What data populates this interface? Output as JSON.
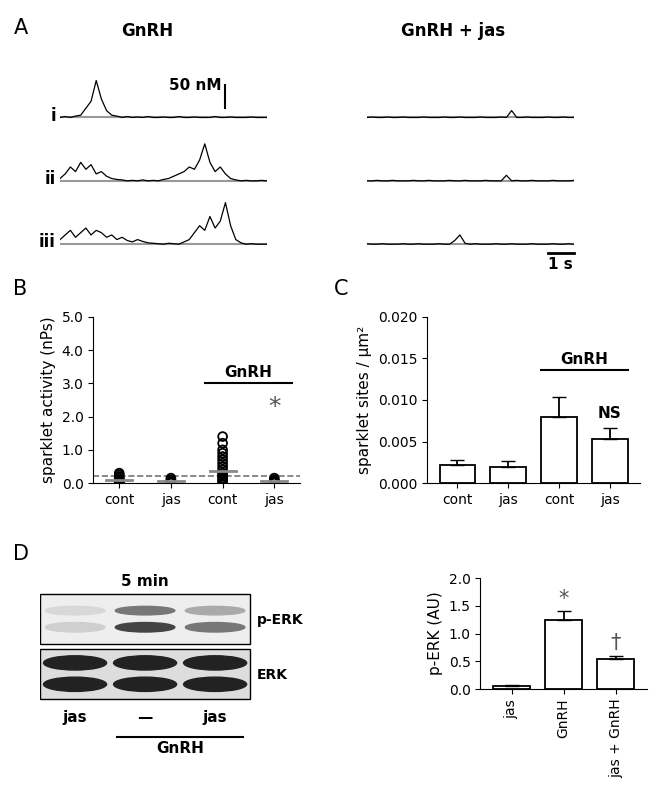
{
  "panel_labels": [
    "A",
    "B",
    "C",
    "D"
  ],
  "traces": {
    "type": "line",
    "columns": [
      "GnRH",
      "GnRH + jas"
    ],
    "rows": [
      "i",
      "ii",
      "iii"
    ],
    "x": [
      0,
      0.2,
      0.4,
      0.6,
      0.8,
      1,
      1.2,
      1.4,
      1.6,
      1.8,
      2,
      2.2,
      2.4,
      2.6,
      2.8,
      3,
      3.2,
      3.4,
      3.6,
      3.8,
      4,
      4.2,
      4.4,
      4.6,
      4.8,
      5,
      5.2,
      5.4,
      5.6,
      5.8,
      6,
      6.2,
      6.4,
      6.6,
      6.8,
      7,
      7.2,
      7.4,
      7.6,
      7.8,
      8
    ],
    "xlim": [
      0,
      8
    ],
    "ylim": [
      -20,
      100
    ],
    "baseline": 0,
    "color": "#000000",
    "series": [
      [
        [
          0,
          2,
          0,
          3,
          5,
          20,
          35,
          80,
          40,
          15,
          5,
          3,
          0,
          2,
          0,
          1,
          0,
          2,
          0,
          0,
          1,
          0,
          0,
          2,
          0,
          0,
          1,
          0,
          0,
          0,
          2,
          0,
          0,
          1,
          0,
          0,
          0,
          1,
          0,
          0,
          0
        ],
        [
          5,
          15,
          30,
          20,
          40,
          25,
          35,
          15,
          20,
          10,
          5,
          3,
          2,
          0,
          1,
          0,
          2,
          0,
          1,
          0,
          3,
          5,
          10,
          15,
          20,
          30,
          25,
          45,
          80,
          40,
          20,
          30,
          15,
          5,
          2,
          0,
          1,
          0,
          0,
          1,
          0
        ],
        [
          10,
          20,
          30,
          15,
          25,
          35,
          20,
          30,
          25,
          15,
          20,
          10,
          15,
          8,
          5,
          10,
          6,
          3,
          2,
          1,
          0,
          2,
          1,
          0,
          5,
          10,
          25,
          40,
          30,
          60,
          35,
          50,
          90,
          40,
          10,
          3,
          0,
          1,
          0,
          0,
          0
        ]
      ],
      [
        [
          0,
          1,
          0,
          0,
          1,
          0,
          0,
          1,
          0,
          0,
          0,
          1,
          0,
          0,
          0,
          1,
          0,
          0,
          1,
          0,
          0,
          0,
          1,
          0,
          0,
          0,
          1,
          0,
          15,
          0,
          0,
          1,
          0,
          0,
          0,
          1,
          0,
          0,
          1,
          0,
          0
        ],
        [
          0,
          0,
          1,
          0,
          0,
          1,
          0,
          0,
          0,
          1,
          0,
          0,
          1,
          0,
          0,
          0,
          1,
          0,
          0,
          1,
          0,
          0,
          0,
          1,
          0,
          0,
          0,
          12,
          0,
          1,
          0,
          0,
          1,
          0,
          0,
          0,
          1,
          0,
          0,
          0,
          1
        ],
        [
          1,
          0,
          0,
          1,
          0,
          0,
          0,
          1,
          0,
          0,
          1,
          0,
          0,
          0,
          1,
          0,
          0,
          8,
          20,
          2,
          0,
          1,
          0,
          0,
          0,
          1,
          0,
          0,
          1,
          0,
          0,
          0,
          1,
          0,
          0,
          0,
          1,
          0,
          0,
          1,
          0
        ]
      ]
    ],
    "scale_bars": {
      "y": 50,
      "y_label": "50 nM",
      "x": 1,
      "x_label": "1 s"
    }
  },
  "chart_data": [
    {
      "type": "scatter",
      "ylabel": "sparklet activity (nPs)",
      "categories": [
        "cont",
        "jas",
        "cont",
        "jas"
      ],
      "values": [
        [
          0.0,
          0.02,
          0.05,
          0.08,
          0.1,
          0.15,
          0.2,
          0.25,
          0.3,
          0.05,
          0.1
        ],
        [
          0.0,
          0.02,
          0.05,
          0.1,
          0.15,
          0.05
        ],
        [
          0.0,
          0.05,
          0.1,
          0.2,
          0.3,
          0.4,
          0.5,
          0.6,
          0.7,
          0.8,
          0.9,
          1.0,
          1.2,
          1.4,
          0.15,
          0.25
        ],
        [
          0.0,
          0.02,
          0.05,
          0.1,
          0.15,
          0.05
        ]
      ],
      "means": [
        0.08,
        0.05,
        0.35,
        0.07
      ],
      "threshold": 0.2,
      "marker": "o",
      "color": "#000000",
      "ylim": [
        0,
        5.0
      ],
      "yticks": [
        {
          "value": 0,
          "label": "0.0"
        },
        {
          "value": 1,
          "label": "1.0"
        },
        {
          "value": 2,
          "label": "2.0"
        },
        {
          "value": 3,
          "label": "3.0"
        },
        {
          "value": 4,
          "label": "4.0"
        },
        {
          "value": 5,
          "label": "5.0"
        }
      ],
      "group_label": "GnRH",
      "group_categories": [
        2,
        3
      ],
      "annotations": [
        {
          "text": "*",
          "category": 3
        }
      ]
    },
    {
      "type": "bar",
      "ylabel": "sparklet sites / µm²",
      "categories": [
        "cont",
        "jas",
        "cont",
        "jas"
      ],
      "values": [
        0.0022,
        0.0019,
        0.008,
        0.0053
      ],
      "errors": [
        0.0006,
        0.0007,
        0.0023,
        0.0013
      ],
      "color": "#ffffff",
      "ylim": [
        0,
        0.02
      ],
      "yticks": [
        {
          "value": 0,
          "label": "0.000"
        },
        {
          "value": 0.005,
          "label": "0.005"
        },
        {
          "value": 0.01,
          "label": "0.010"
        },
        {
          "value": 0.015,
          "label": "0.015"
        },
        {
          "value": 0.02,
          "label": "0.020"
        }
      ],
      "group_label": "GnRH",
      "group_categories": [
        2,
        3
      ],
      "annotations": [
        {
          "text": "NS",
          "category": 3
        }
      ]
    },
    {
      "type": "bar",
      "ylabel": "p-ERK (AU)",
      "categories": [
        "jas",
        "GnRH",
        "jas + GnRH"
      ],
      "values": [
        0.05,
        1.25,
        0.55
      ],
      "errors": [
        0.02,
        0.15,
        0.05
      ],
      "color": "#ffffff",
      "ylim": [
        0,
        2.0
      ],
      "yticks": [
        {
          "value": 0,
          "label": "0.0"
        },
        {
          "value": 0.5,
          "label": "0.5"
        },
        {
          "value": 1,
          "label": "1.0"
        },
        {
          "value": 1.5,
          "label": "1.5"
        },
        {
          "value": 2,
          "label": "2.0"
        }
      ],
      "annotations": [
        {
          "text": "*",
          "category": 1
        },
        {
          "text": "†",
          "category": 2
        }
      ]
    }
  ],
  "blot": {
    "time": "5 min",
    "bands": [
      "p-ERK",
      "ERK"
    ],
    "lanes": [
      "jas",
      "—",
      "jas"
    ],
    "group_label": "GnRH"
  }
}
